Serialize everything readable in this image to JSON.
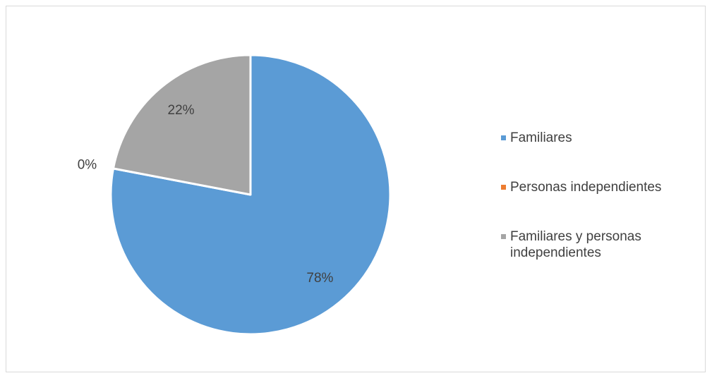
{
  "chart_data": {
    "type": "pie",
    "categories": [
      "Familiares",
      "Personas independientes",
      "Familiares y personas independientes"
    ],
    "values": [
      78,
      0,
      22
    ],
    "value_labels": [
      "78%",
      "0%",
      "22%"
    ],
    "colors": [
      "#5b9bd5",
      "#ed7d31",
      "#a5a5a5"
    ],
    "legend": "right"
  }
}
